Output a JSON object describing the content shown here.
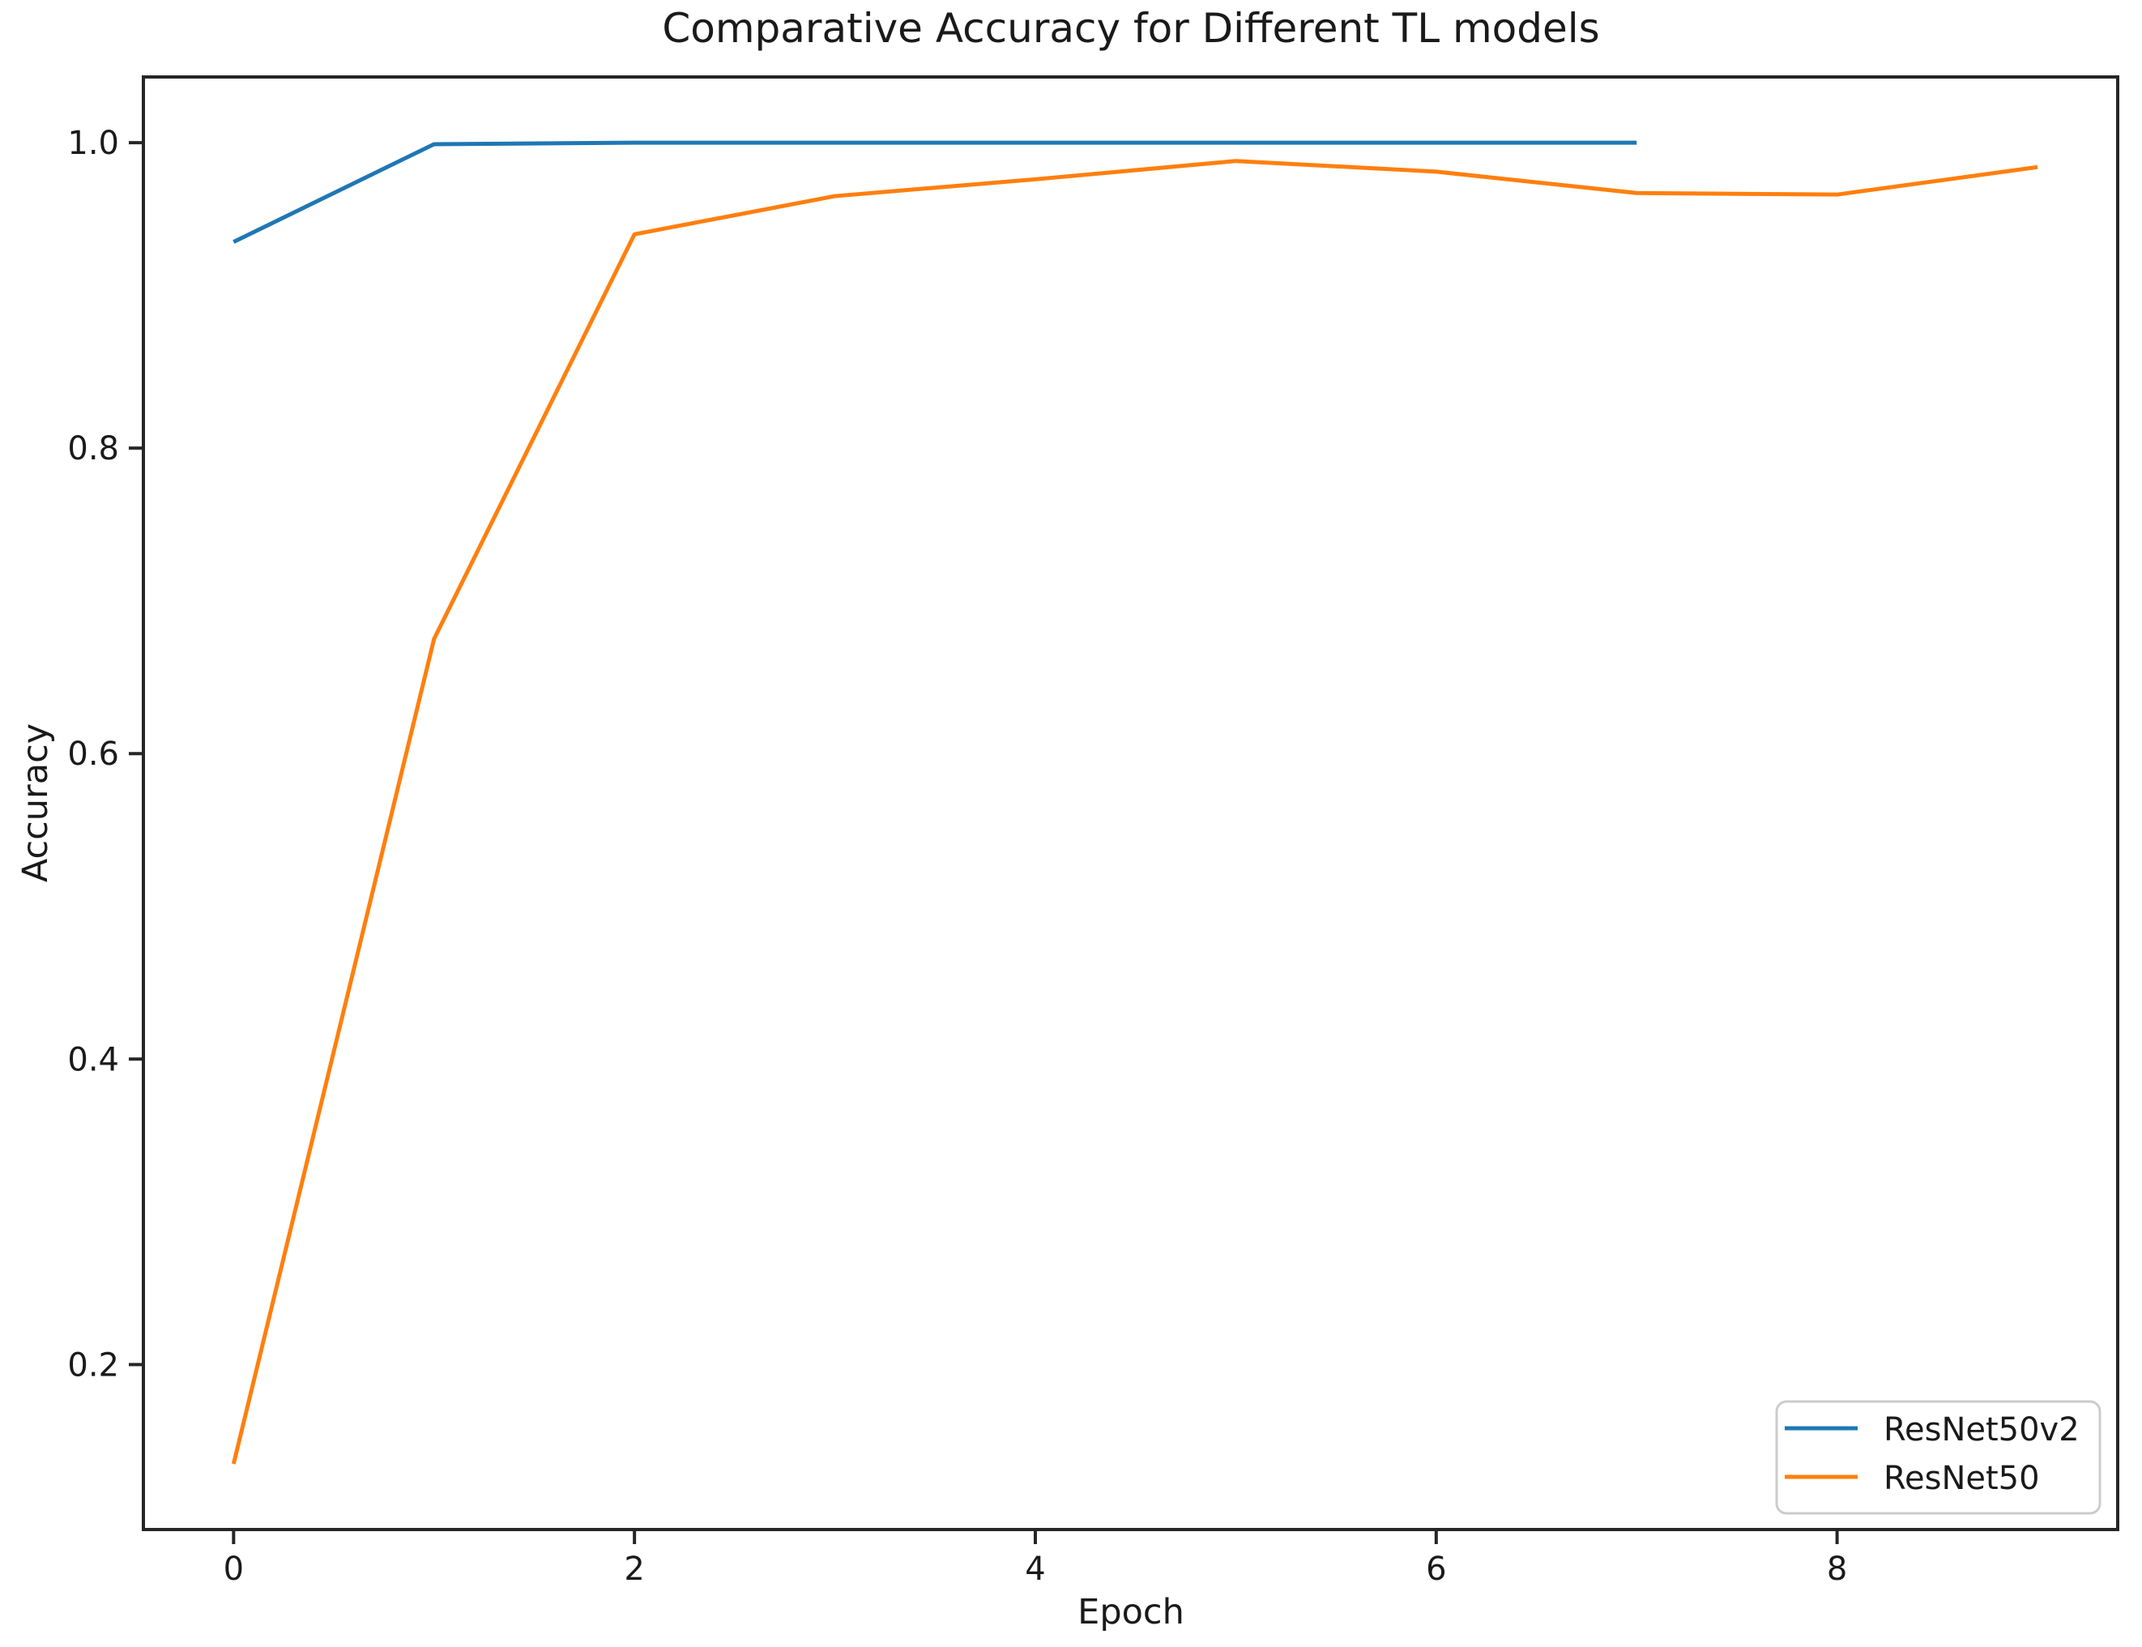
{
  "figure": {
    "background": "#ffffff",
    "text_color": "#1a1a1a",
    "spine_color": "#262626"
  },
  "chart_data": {
    "type": "line",
    "title": "Comparative Accuracy for Different TL models",
    "xlabel": "Epoch",
    "ylabel": "Accuracy",
    "xlim": [
      -0.45,
      9.4
    ],
    "ylim": [
      0.092,
      1.043
    ],
    "xticks": [
      "0",
      "2",
      "4",
      "6",
      "8"
    ],
    "yticks": [
      "0.2",
      "0.4",
      "0.6",
      "0.8",
      "1.0"
    ],
    "grid": false,
    "legend_position": "lower right",
    "series": [
      {
        "name": "ResNet50v2",
        "color": "#1f77b4",
        "x": [
          0,
          1,
          2,
          3,
          4,
          5,
          6,
          7
        ],
        "values": [
          0.935,
          0.999,
          1.0,
          1.0,
          1.0,
          1.0,
          1.0,
          1.0
        ]
      },
      {
        "name": "ResNet50",
        "color": "#ff7f0e",
        "x": [
          0,
          1,
          2,
          3,
          4,
          5,
          6,
          7,
          8,
          9
        ],
        "values": [
          0.135,
          0.675,
          0.94,
          0.965,
          0.976,
          0.988,
          0.981,
          0.967,
          0.966,
          0.984
        ]
      }
    ]
  }
}
